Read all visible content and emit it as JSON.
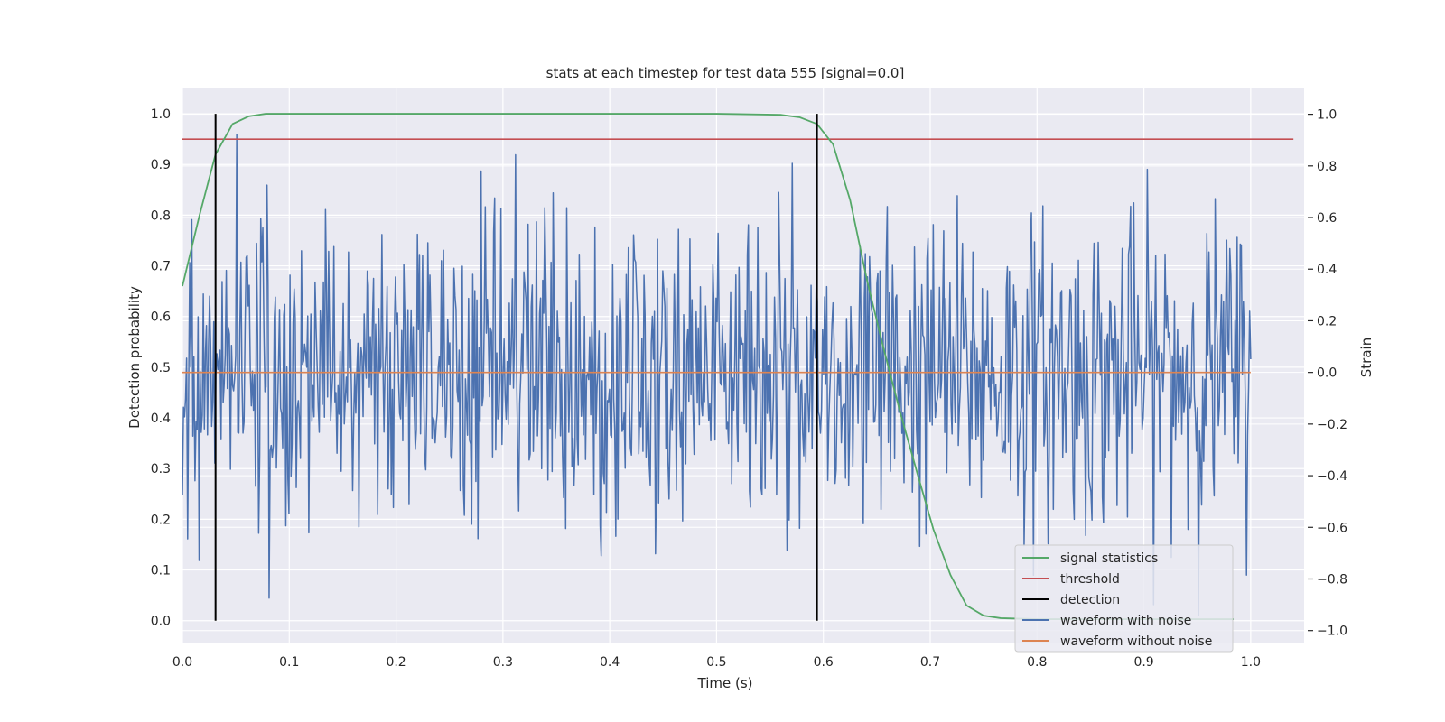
{
  "chart_data": {
    "type": "line",
    "title": "stats at each timestep for test data 555 [signal=0.0]",
    "xlabel": "Time (s)",
    "ylabel": "Detection probability",
    "y2label": "Strain",
    "xlim": [
      0.0,
      1.05
    ],
    "ylim": [
      -0.045,
      1.05
    ],
    "y2lim": [
      -1.05,
      1.1
    ],
    "x_ticks": [
      0.0,
      0.1,
      0.2,
      0.3,
      0.4,
      0.5,
      0.6,
      0.7,
      0.8,
      0.9,
      1.0
    ],
    "y_ticks": [
      0.0,
      0.1,
      0.2,
      0.3,
      0.4,
      0.5,
      0.6,
      0.7,
      0.8,
      0.9,
      1.0
    ],
    "y2_ticks": [
      -1.0,
      -0.8,
      -0.6,
      -0.4,
      -0.2,
      0.0,
      0.2,
      0.4,
      0.6,
      0.8,
      1.0
    ],
    "grid": true,
    "legend_position": "lower-right",
    "colors": {
      "plot_background": "#eaeaf2",
      "grid": "#ffffff",
      "signal_statistics": "#55a868",
      "threshold": "#c44e52",
      "detection": "#000000",
      "waveform_with_noise": "#4c72b0",
      "waveform_without_noise": "#dd8452"
    },
    "series": [
      {
        "name": "signal statistics",
        "axis": "left",
        "x": [
          0.0,
          0.016,
          0.031,
          0.047,
          0.062,
          0.078,
          0.1,
          0.2,
          0.3,
          0.4,
          0.5,
          0.56,
          0.578,
          0.594,
          0.609,
          0.625,
          0.641,
          0.656,
          0.672,
          0.688,
          0.703,
          0.719,
          0.734,
          0.75,
          0.766,
          0.8,
          0.85,
          0.9,
          0.95,
          0.984
        ],
        "values": [
          0.66,
          0.8,
          0.92,
          0.98,
          0.995,
          1.0,
          1.0,
          1.0,
          1.0,
          1.0,
          1.0,
          0.998,
          0.993,
          0.98,
          0.94,
          0.83,
          0.67,
          0.54,
          0.41,
          0.29,
          0.18,
          0.09,
          0.03,
          0.01,
          0.005,
          0.003,
          0.003,
          0.003,
          0.003,
          0.003
        ]
      },
      {
        "name": "threshold",
        "axis": "left",
        "x": [
          0.0,
          1.04
        ],
        "values": [
          0.95,
          0.95
        ]
      },
      {
        "name": "detection",
        "axis": "left",
        "type": "vlines",
        "x": [
          0.031,
          0.594
        ],
        "ymin": 0.0,
        "ymax": 1.0
      },
      {
        "name": "waveform with noise",
        "axis": "right",
        "x_start": 0.0,
        "x_end": 1.0,
        "n_points": 1024,
        "mean": 0.0,
        "std": 0.3,
        "range": [
          -0.97,
          1.0
        ]
      },
      {
        "name": "waveform without noise",
        "axis": "right",
        "x": [
          0.0,
          1.0
        ],
        "values": [
          0.0,
          0.0
        ]
      }
    ]
  }
}
